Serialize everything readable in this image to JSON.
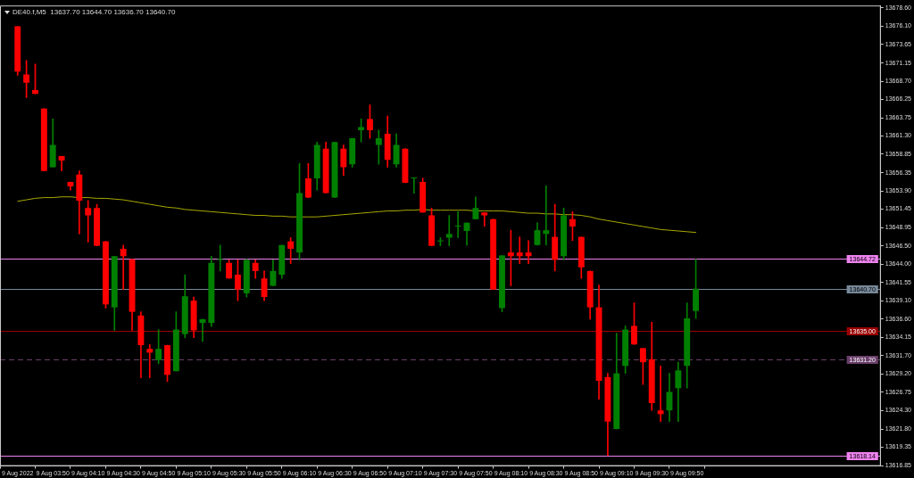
{
  "chart_data": {
    "type": "candlestick",
    "title": "DE40.f,M5  13637.70 13644.70 13636.70 13640.70",
    "categories": [
      "9 Aug 2022",
      null,
      null,
      null,
      "9 Aug 03:50",
      null,
      null,
      null,
      "9 Aug 04:10",
      null,
      null,
      null,
      "9 Aug 04:30",
      null,
      null,
      null,
      "9 Aug 04:50",
      null,
      null,
      null,
      "9 Aug 05:10",
      null,
      null,
      null,
      "9 Aug 05:30",
      null,
      null,
      null,
      "9 Aug 05:50",
      null,
      null,
      null,
      "9 Aug 06:10",
      null,
      null,
      null,
      "9 Aug 06:30",
      null,
      null,
      null,
      "9 Aug 06:50",
      null,
      null,
      null,
      "9 Aug 07:10",
      null,
      null,
      null,
      "9 Aug 07:30",
      null,
      null,
      null,
      "9 Aug 07:50",
      null,
      null,
      null,
      "9 Aug 08:10",
      null,
      null,
      null,
      "9 Aug 08:30",
      null,
      null,
      null,
      "9 Aug 08:50",
      null,
      null,
      null,
      "9 Aug 09:10",
      null,
      null,
      null,
      "9 Aug 09:30",
      null,
      null,
      null,
      "9 Aug 09:50",
      null
    ],
    "ohlc": [
      [
        13676.1,
        13676.1,
        13669.5,
        13670.0
      ],
      [
        13669.6,
        13671.5,
        13666.5,
        13668.5
      ],
      [
        13667.5,
        13671.0,
        13667.0,
        13667.0
      ],
      [
        13665.0,
        13665.0,
        13656.6,
        13656.6
      ],
      [
        13657.1,
        13663.6,
        13657.1,
        13660.1
      ],
      [
        13658.6,
        13658.6,
        13656.6,
        13658.0
      ],
      [
        13655.1,
        13655.1,
        13654.0,
        13654.5
      ],
      [
        13656.1,
        13656.6,
        13648.1,
        13652.6
      ],
      [
        13651.6,
        13652.6,
        13647.0,
        13650.6
      ],
      [
        13651.6,
        13652.1,
        13646.5,
        13646.5
      ],
      [
        13647.1,
        13647.1,
        13638.1,
        13638.6
      ],
      [
        13638.2,
        13645.1,
        13635.1,
        13645.1
      ],
      [
        13646.1,
        13646.6,
        13640.6,
        13645.1
      ],
      [
        13644.7,
        13644.7,
        13635.1,
        13637.6
      ],
      [
        13637.1,
        13637.6,
        13628.7,
        13633.1
      ],
      [
        13632.6,
        13633.2,
        13628.7,
        13632.1
      ],
      [
        13631.1,
        13635.2,
        13630.6,
        13632.6
      ],
      [
        13633.1,
        13633.1,
        13628.2,
        13629.1
      ],
      [
        13629.6,
        13637.6,
        13629.6,
        13635.2
      ],
      [
        13634.6,
        13642.6,
        13634.1,
        13639.7
      ],
      [
        13639.1,
        13639.6,
        13634.1,
        13635.1
      ],
      [
        13636.1,
        13636.6,
        13633.6,
        13636.6
      ],
      [
        13636.1,
        13645.1,
        13635.6,
        13644.2
      ],
      [
        13644.6,
        13646.6,
        13643.1,
        13644.6
      ],
      [
        13644.2,
        13644.6,
        13642.1,
        13642.1
      ],
      [
        13642.6,
        13644.6,
        13639.1,
        13640.6
      ],
      [
        13640.1,
        13644.7,
        13639.6,
        13644.6
      ],
      [
        13644.2,
        13644.6,
        13642.1,
        13643.1
      ],
      [
        13642.1,
        13643.1,
        13639.1,
        13639.6
      ],
      [
        13641.1,
        13644.6,
        13641.1,
        13643.1
      ],
      [
        13642.6,
        13646.6,
        13642.1,
        13646.6
      ],
      [
        13647.1,
        13647.6,
        13644.1,
        13646.1
      ],
      [
        13645.6,
        13657.6,
        13644.6,
        13653.6
      ],
      [
        13655.6,
        13657.6,
        13653.0,
        13653.0
      ],
      [
        13655.6,
        13660.5,
        13654.0,
        13660.1
      ],
      [
        13659.6,
        13660.5,
        13653.6,
        13653.6
      ],
      [
        13653.0,
        13660.5,
        13653.0,
        13660.5
      ],
      [
        13659.6,
        13660.1,
        13656.0,
        13657.1
      ],
      [
        13657.5,
        13661.0,
        13657.1,
        13661.0
      ],
      [
        13662.1,
        13663.6,
        13660.5,
        13662.5
      ],
      [
        13663.6,
        13665.5,
        13661.0,
        13662.1
      ],
      [
        13660.1,
        13662.1,
        13657.5,
        13661.0
      ],
      [
        13661.6,
        13664.0,
        13657.1,
        13658.1
      ],
      [
        13657.5,
        13661.6,
        13657.1,
        13660.1
      ],
      [
        13659.6,
        13659.6,
        13655.0,
        13655.0
      ],
      [
        13655.6,
        13655.6,
        13653.6,
        13655.6
      ],
      [
        13655.1,
        13655.6,
        13651.0,
        13651.0
      ],
      [
        13650.6,
        13651.6,
        13646.5,
        13646.5
      ],
      [
        13647.1,
        13647.6,
        13646.5,
        13647.1
      ],
      [
        13647.6,
        13650.6,
        13646.5,
        13648.1
      ],
      [
        13649.1,
        13651.1,
        13647.6,
        13649.1
      ],
      [
        13648.5,
        13649.6,
        13646.6,
        13649.6
      ],
      [
        13650.1,
        13653.1,
        13650.1,
        13651.6
      ],
      [
        13651.0,
        13651.0,
        13649.1,
        13650.6
      ],
      [
        13650.1,
        13650.1,
        13640.6,
        13640.6
      ],
      [
        13638.1,
        13645.2,
        13637.6,
        13645.2
      ],
      [
        13645.6,
        13648.6,
        13641.1,
        13645.1
      ],
      [
        13645.6,
        13647.7,
        13644.1,
        13645.1
      ],
      [
        13645.6,
        13647.2,
        13644.1,
        13645.1
      ],
      [
        13646.6,
        13649.6,
        13646.6,
        13648.6
      ],
      [
        13648.1,
        13654.6,
        13646.6,
        13648.6
      ],
      [
        13647.7,
        13652.1,
        13643.1,
        13644.6
      ],
      [
        13645.1,
        13651.6,
        13644.6,
        13650.6
      ],
      [
        13650.1,
        13651.1,
        13647.2,
        13649.1
      ],
      [
        13647.7,
        13647.7,
        13642.1,
        13643.6
      ],
      [
        13643.1,
        13643.1,
        13636.6,
        13638.2
      ],
      [
        13638.2,
        13641.2,
        13625.8,
        13628.3
      ],
      [
        13628.8,
        13629.3,
        13618.2,
        13622.8
      ],
      [
        13621.8,
        13634.7,
        13621.8,
        13629.3
      ],
      [
        13630.3,
        13635.7,
        13629.3,
        13635.2
      ],
      [
        13635.7,
        13638.8,
        13633.2,
        13633.2
      ],
      [
        13632.7,
        13632.7,
        13627.8,
        13630.8
      ],
      [
        13631.2,
        13636.2,
        13624.3,
        13625.3
      ],
      [
        13624.3,
        13630.3,
        13622.8,
        13623.8
      ],
      [
        13624.3,
        13629.3,
        13622.8,
        13626.8
      ],
      [
        13627.3,
        13630.8,
        13622.8,
        13629.7
      ],
      [
        13630.3,
        13638.8,
        13627.3,
        13636.7
      ],
      [
        13637.7,
        13644.7,
        13636.7,
        13640.7
      ]
    ],
    "colors": [
      "#ff0000",
      "#ff0000",
      "#ff0000",
      "#ff0000",
      "#008000",
      "#ff0000",
      "#ff0000",
      "#ff0000",
      "#ff0000",
      "#ff0000",
      "#ff0000",
      "#008000",
      "#ff0000",
      "#ff0000",
      "#ff0000",
      "#ff0000",
      "#008000",
      "#ff0000",
      "#008000",
      "#008000",
      "#ff0000",
      "#008000",
      "#008000",
      "#008000",
      "#ff0000",
      "#ff0000",
      "#008000",
      "#ff0000",
      "#ff0000",
      "#008000",
      "#008000",
      "#ff0000",
      "#008000",
      "#ff0000",
      "#008000",
      "#ff0000",
      "#008000",
      "#ff0000",
      "#008000",
      "#008000",
      "#ff0000",
      "#008000",
      "#ff0000",
      "#008000",
      "#ff0000",
      "#008000",
      "#ff0000",
      "#ff0000",
      "#008000",
      "#008000",
      "#008000",
      "#008000",
      "#008000",
      "#ff0000",
      "#ff0000",
      "#008000",
      "#ff0000",
      "#ff0000",
      "#ff0000",
      "#008000",
      "#008000",
      "#ff0000",
      "#008000",
      "#ff0000",
      "#ff0000",
      "#ff0000",
      "#ff0000",
      "#ff0000",
      "#008000",
      "#008000",
      "#ff0000",
      "#ff0000",
      "#ff0000",
      "#ff0000",
      "#008000",
      "#008000",
      "#008000",
      "#008000"
    ],
    "series": [
      {
        "type": "line",
        "color": "#a8a800",
        "values": [
          13652.5,
          13652.7,
          13652.9,
          13653.0,
          13653.0,
          13653.1,
          13653.1,
          13653.0,
          13653.0,
          13652.9,
          13652.9,
          13652.8,
          13652.7,
          13652.5,
          13652.3,
          13652.1,
          13651.9,
          13651.7,
          13651.6,
          13651.4,
          13651.3,
          13651.2,
          13651.1,
          13651.0,
          13650.9,
          13650.8,
          13650.7,
          13650.6,
          13650.6,
          13650.5,
          13650.5,
          13650.4,
          13650.4,
          13650.4,
          13650.4,
          13650.5,
          13650.6,
          13650.7,
          13650.8,
          13650.9,
          13651.0,
          13651.1,
          13651.2,
          13651.2,
          13651.3,
          13651.3,
          13651.4,
          13651.3,
          13651.3,
          13651.3,
          13651.3,
          13651.3,
          13651.2,
          13651.2,
          13651.2,
          13651.2,
          13651.1,
          13651.0,
          13650.9,
          13650.9,
          13650.8,
          13650.8,
          13650.7,
          13650.7,
          13650.6,
          13650.4,
          13650.1,
          13649.9,
          13649.7,
          13649.5,
          13649.3,
          13649.1,
          13648.9,
          13648.7,
          13648.6,
          13648.5,
          13648.4,
          13648.3
        ]
      }
    ],
    "ylim": [
      13616.8,
      13678.9
    ],
    "yticks": [
      {
        "value": 13616.85,
        "label": "13616.85"
      },
      {
        "value": 13619.35,
        "label": "13619.35"
      },
      {
        "value": 13621.8,
        "label": "13621.80"
      },
      {
        "value": 13624.3,
        "label": "13624.30"
      },
      {
        "value": 13626.75,
        "label": "13626.75"
      },
      {
        "value": 13629.2,
        "label": "13629.20"
      },
      {
        "value": 13631.7,
        "label": "13631.70"
      },
      {
        "value": 13634.15,
        "label": "13634.15"
      },
      {
        "value": 13636.6,
        "label": "13636.60"
      },
      {
        "value": 13639.1,
        "label": "13639.10"
      },
      {
        "value": 13641.55,
        "label": "13641.55"
      },
      {
        "value": 13644,
        "label": "13644.00"
      },
      {
        "value": 13646.5,
        "label": "13646.50"
      },
      {
        "value": 13648.95,
        "label": "13648.95"
      },
      {
        "value": 13651.45,
        "label": "13651.45"
      },
      {
        "value": 13653.9,
        "label": "13653.90"
      },
      {
        "value": 13656.35,
        "label": "13656.35"
      },
      {
        "value": 13658.85,
        "label": "13658.85"
      },
      {
        "value": 13661.3,
        "label": "13661.30"
      },
      {
        "value": 13663.75,
        "label": "13663.75"
      },
      {
        "value": 13666.25,
        "label": "13666.25"
      },
      {
        "value": 13668.7,
        "label": "13668.70"
      },
      {
        "value": 13671.15,
        "label": "13671.15"
      },
      {
        "value": 13673.65,
        "label": "13673.65"
      },
      {
        "value": 13676.1,
        "label": "13676.10"
      },
      {
        "value": 13678.6,
        "label": "13678.60"
      }
    ],
    "ref_lines": [
      {
        "axis": "y",
        "value": 13644.72,
        "label": "13644.72",
        "color": "#ee82ee"
      },
      {
        "axis": "y",
        "value": 13640.7,
        "label": "13640.70",
        "color": "#778899"
      },
      {
        "axis": "y",
        "value": 13635,
        "label": "13635.00",
        "color": "#990000"
      },
      {
        "axis": "y",
        "value": 13631.2,
        "label": "13631.20",
        "color": "#6a3f6a",
        "line_style": "dashed"
      },
      {
        "axis": "y",
        "value": 13618.14,
        "label": "13618.14",
        "color": "#ee82ee"
      }
    ]
  }
}
